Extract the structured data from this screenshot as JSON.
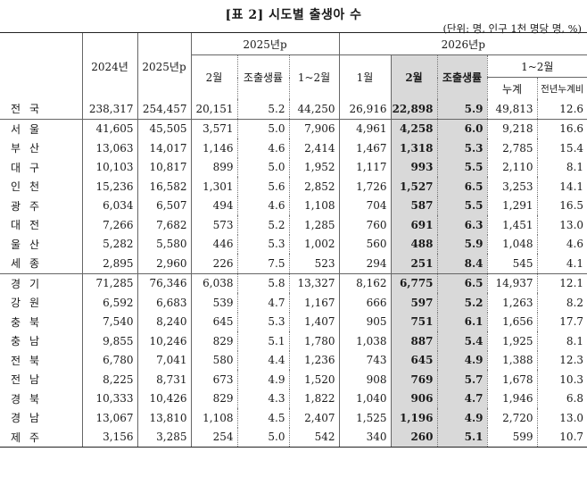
{
  "title": "[표 2] 시도별 출생아 수",
  "unit_note": "(단위: 명, 인구 1천 명당 명, %)",
  "header": {
    "col_2024": "2024년",
    "col_2025p": "2025년p",
    "group_2025p": "2025년p",
    "group_2026p": "2026년p",
    "sub_feb": "2월",
    "sub_cbr": "조출생률",
    "sub_jan_feb": "1~2월",
    "sub_jan": "1월",
    "sub_feb26": "2월",
    "sub_cbr26": "조출생률",
    "sub_jan_feb26": "1~2월",
    "sub_cum": "누계",
    "sub_yoy": "전년누계비"
  },
  "rows": [
    {
      "region": "전국",
      "v2024": "238,317",
      "v2025": "254,457",
      "feb25": "20,151",
      "cbr25": "5.2",
      "jf25": "44,250",
      "jan26": "26,916",
      "feb26": "22,898",
      "cbr26": "5.9",
      "cum26": "49,813",
      "yoy": "12.6"
    },
    {
      "region": "서울",
      "v2024": "41,605",
      "v2025": "45,505",
      "feb25": "3,571",
      "cbr25": "5.0",
      "jf25": "7,906",
      "jan26": "4,961",
      "feb26": "4,258",
      "cbr26": "6.0",
      "cum26": "9,218",
      "yoy": "16.6"
    },
    {
      "region": "부산",
      "v2024": "13,063",
      "v2025": "14,017",
      "feb25": "1,146",
      "cbr25": "4.6",
      "jf25": "2,414",
      "jan26": "1,467",
      "feb26": "1,318",
      "cbr26": "5.3",
      "cum26": "2,785",
      "yoy": "15.4"
    },
    {
      "region": "대구",
      "v2024": "10,103",
      "v2025": "10,817",
      "feb25": "899",
      "cbr25": "5.0",
      "jf25": "1,952",
      "jan26": "1,117",
      "feb26": "993",
      "cbr26": "5.5",
      "cum26": "2,110",
      "yoy": "8.1"
    },
    {
      "region": "인천",
      "v2024": "15,236",
      "v2025": "16,582",
      "feb25": "1,301",
      "cbr25": "5.6",
      "jf25": "2,852",
      "jan26": "1,726",
      "feb26": "1,527",
      "cbr26": "6.5",
      "cum26": "3,253",
      "yoy": "14.1"
    },
    {
      "region": "광주",
      "v2024": "6,034",
      "v2025": "6,507",
      "feb25": "494",
      "cbr25": "4.6",
      "jf25": "1,108",
      "jan26": "704",
      "feb26": "587",
      "cbr26": "5.5",
      "cum26": "1,291",
      "yoy": "16.5"
    },
    {
      "region": "대전",
      "v2024": "7,266",
      "v2025": "7,682",
      "feb25": "573",
      "cbr25": "5.2",
      "jf25": "1,285",
      "jan26": "760",
      "feb26": "691",
      "cbr26": "6.3",
      "cum26": "1,451",
      "yoy": "13.0"
    },
    {
      "region": "울산",
      "v2024": "5,282",
      "v2025": "5,580",
      "feb25": "446",
      "cbr25": "5.3",
      "jf25": "1,002",
      "jan26": "560",
      "feb26": "488",
      "cbr26": "5.9",
      "cum26": "1,048",
      "yoy": "4.6"
    },
    {
      "region": "세종",
      "v2024": "2,895",
      "v2025": "2,960",
      "feb25": "226",
      "cbr25": "7.5",
      "jf25": "523",
      "jan26": "294",
      "feb26": "251",
      "cbr26": "8.4",
      "cum26": "545",
      "yoy": "4.1"
    },
    {
      "region": "경기",
      "v2024": "71,285",
      "v2025": "76,346",
      "feb25": "6,038",
      "cbr25": "5.8",
      "jf25": "13,327",
      "jan26": "8,162",
      "feb26": "6,775",
      "cbr26": "6.5",
      "cum26": "14,937",
      "yoy": "12.1"
    },
    {
      "region": "강원",
      "v2024": "6,592",
      "v2025": "6,683",
      "feb25": "539",
      "cbr25": "4.7",
      "jf25": "1,167",
      "jan26": "666",
      "feb26": "597",
      "cbr26": "5.2",
      "cum26": "1,263",
      "yoy": "8.2"
    },
    {
      "region": "충북",
      "v2024": "7,540",
      "v2025": "8,240",
      "feb25": "645",
      "cbr25": "5.3",
      "jf25": "1,407",
      "jan26": "905",
      "feb26": "751",
      "cbr26": "6.1",
      "cum26": "1,656",
      "yoy": "17.7"
    },
    {
      "region": "충남",
      "v2024": "9,855",
      "v2025": "10,246",
      "feb25": "829",
      "cbr25": "5.1",
      "jf25": "1,780",
      "jan26": "1,038",
      "feb26": "887",
      "cbr26": "5.4",
      "cum26": "1,925",
      "yoy": "8.1"
    },
    {
      "region": "전북",
      "v2024": "6,780",
      "v2025": "7,041",
      "feb25": "580",
      "cbr25": "4.4",
      "jf25": "1,236",
      "jan26": "743",
      "feb26": "645",
      "cbr26": "4.9",
      "cum26": "1,388",
      "yoy": "12.3"
    },
    {
      "region": "전남",
      "v2024": "8,225",
      "v2025": "8,731",
      "feb25": "673",
      "cbr25": "4.9",
      "jf25": "1,520",
      "jan26": "908",
      "feb26": "769",
      "cbr26": "5.7",
      "cum26": "1,678",
      "yoy": "10.3"
    },
    {
      "region": "경북",
      "v2024": "10,333",
      "v2025": "10,426",
      "feb25": "829",
      "cbr25": "4.3",
      "jf25": "1,822",
      "jan26": "1,040",
      "feb26": "906",
      "cbr26": "4.7",
      "cum26": "1,946",
      "yoy": "6.8"
    },
    {
      "region": "경남",
      "v2024": "13,067",
      "v2025": "13,810",
      "feb25": "1,108",
      "cbr25": "4.5",
      "jf25": "2,407",
      "jan26": "1,525",
      "feb26": "1,196",
      "cbr26": "4.9",
      "cum26": "2,720",
      "yoy": "13.0"
    },
    {
      "region": "제주",
      "v2024": "3,156",
      "v2025": "3,285",
      "feb25": "254",
      "cbr25": "5.0",
      "jf25": "542",
      "jan26": "340",
      "feb26": "260",
      "cbr26": "5.1",
      "cum26": "599",
      "yoy": "10.7"
    }
  ]
}
